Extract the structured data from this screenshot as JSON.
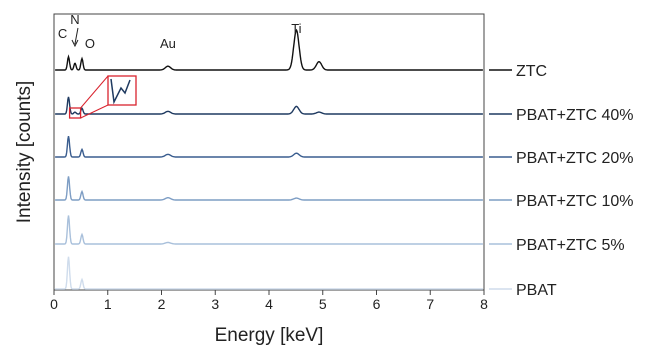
{
  "chart_data": {
    "type": "line",
    "xlabel": "Energy [keV]",
    "ylabel": "Intensity [counts]",
    "xlim": [
      0,
      8
    ],
    "x_ticks": [
      "0",
      "1",
      "2",
      "3",
      "4",
      "5",
      "6",
      "7",
      "8"
    ],
    "y_ticks_shown": false,
    "grid": false,
    "legend_placement": "right, one label per trace",
    "peak_labels": [
      {
        "text": "C",
        "x": 0.27
      },
      {
        "text": "N",
        "x": 0.39
      },
      {
        "text": "O",
        "x": 0.52
      },
      {
        "text": "Au",
        "x": 2.12
      },
      {
        "text": "Ti",
        "x": 4.51
      }
    ],
    "inset": {
      "description_source": "magnified region around the N peak on PBAT+ZTC 40%",
      "x_range": [
        0.33,
        0.46
      ]
    },
    "series": [
      {
        "name": "ZTC",
        "color": "#111111",
        "baseline": 0.0,
        "peaks": [
          [
            0.27,
            0.35
          ],
          [
            0.39,
            0.18
          ],
          [
            0.52,
            0.3
          ],
          [
            2.12,
            0.1
          ],
          [
            4.51,
            1.05
          ],
          [
            4.93,
            0.22
          ]
        ]
      },
      {
        "name": "PBAT+ZTC 40%",
        "color": "#1f3a60",
        "baseline": 0.0,
        "peaks": [
          [
            0.27,
            0.45
          ],
          [
            0.39,
            0.05
          ],
          [
            0.52,
            0.15
          ],
          [
            2.12,
            0.07
          ],
          [
            4.51,
            0.2
          ],
          [
            4.93,
            0.05
          ]
        ]
      },
      {
        "name": "PBAT+ZTC 20%",
        "color": "#3a5d8f",
        "baseline": 0.0,
        "peaks": [
          [
            0.27,
            0.55
          ],
          [
            0.52,
            0.2
          ],
          [
            2.12,
            0.07
          ],
          [
            4.51,
            0.1
          ]
        ]
      },
      {
        "name": "PBAT+ZTC 10%",
        "color": "#7d9dc4",
        "baseline": 0.0,
        "peaks": [
          [
            0.27,
            0.62
          ],
          [
            0.52,
            0.22
          ],
          [
            2.12,
            0.06
          ],
          [
            4.51,
            0.05
          ]
        ]
      },
      {
        "name": "PBAT+ZTC 5%",
        "color": "#a9c0db",
        "baseline": 0.0,
        "peaks": [
          [
            0.27,
            0.75
          ],
          [
            0.52,
            0.25
          ],
          [
            2.12,
            0.04
          ]
        ]
      },
      {
        "name": "PBAT",
        "color": "#cfdcec",
        "baseline": 0.0,
        "peaks": [
          [
            0.27,
            0.85
          ],
          [
            0.52,
            0.25
          ]
        ]
      }
    ]
  }
}
